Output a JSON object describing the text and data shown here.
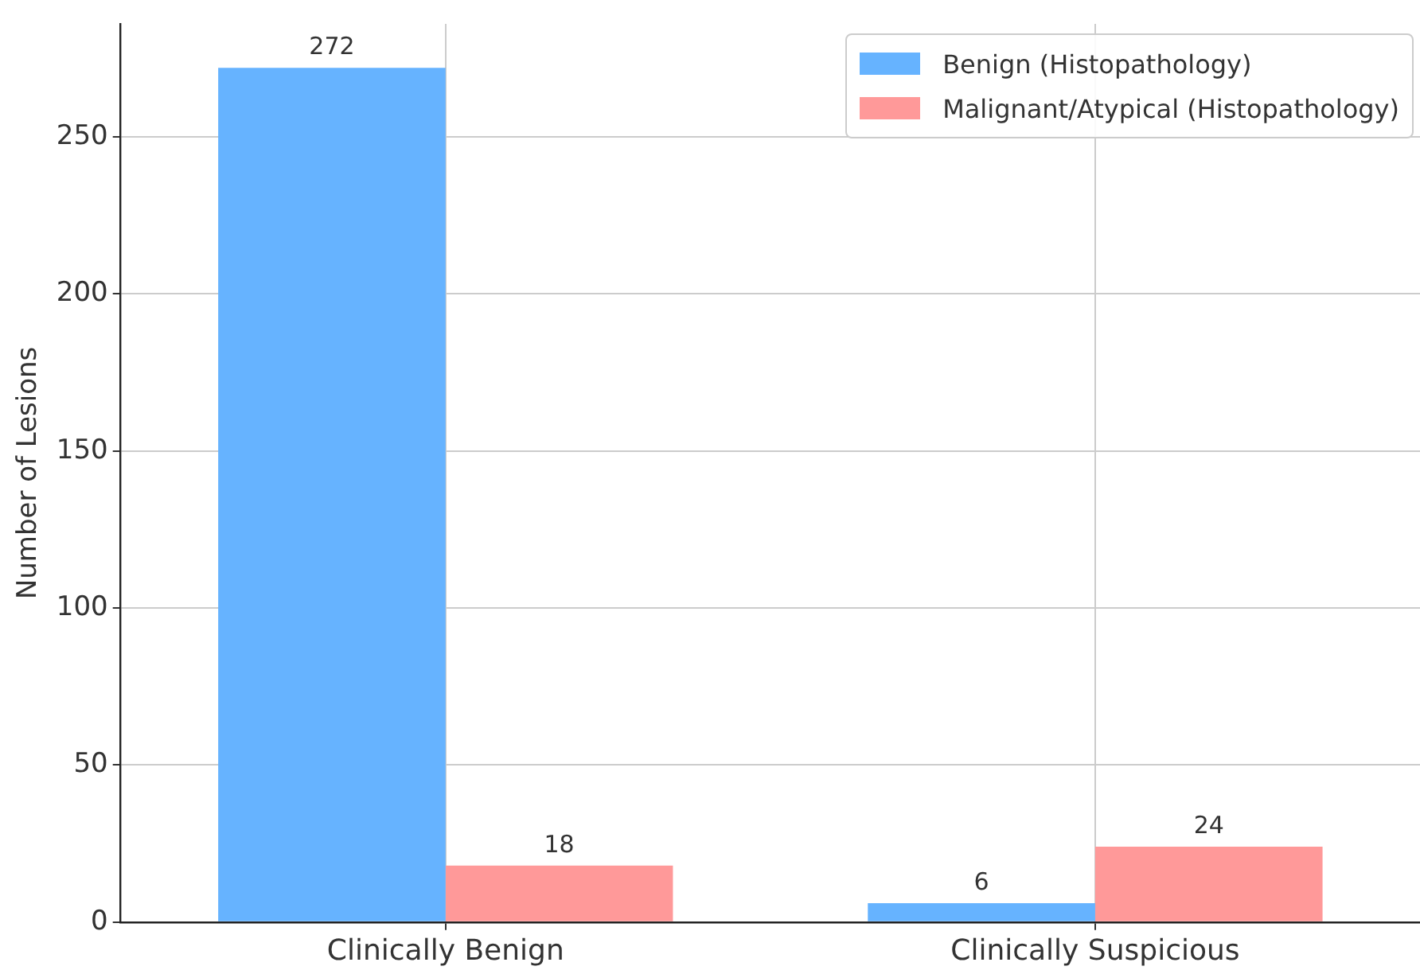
{
  "chart_data": {
    "type": "bar",
    "ylabel": "Number of Lesions",
    "categories": [
      "Clinically Benign",
      "Clinically Suspicious"
    ],
    "series": [
      {
        "name": "Benign (Histopathology)",
        "color": "#66b3ff",
        "values": [
          272,
          6
        ]
      },
      {
        "name": "Malignant/Atypical (Histopathology)",
        "color": "#ff9999",
        "values": [
          18,
          24
        ]
      }
    ],
    "ylim": [
      0,
      286
    ],
    "yticks": [
      0,
      50,
      100,
      150,
      200,
      250
    ],
    "grid": true,
    "legend": "top right",
    "data_labels": true
  }
}
